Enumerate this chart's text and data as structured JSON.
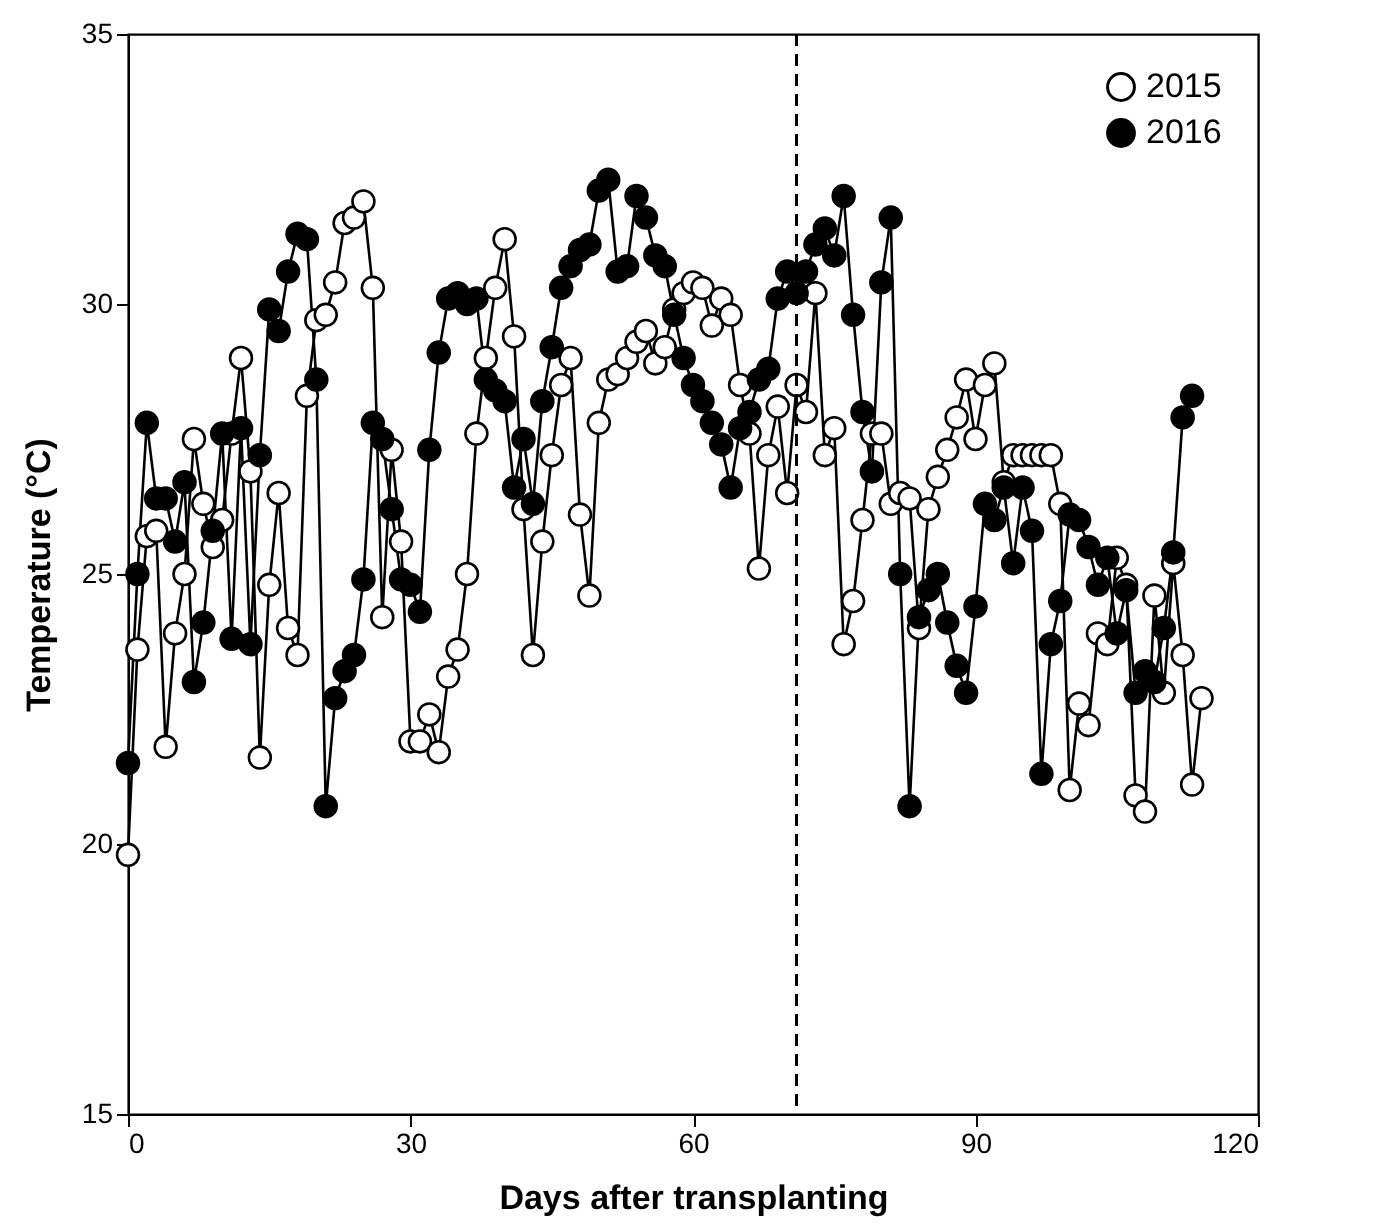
{
  "chart_data": {
    "type": "line",
    "xlabel": "Days after transplanting",
    "ylabel": "Temperature (°C)",
    "xlim": [
      0,
      120
    ],
    "xticks": [
      0,
      30,
      60,
      90,
      120
    ],
    "ylim": [
      15,
      35
    ],
    "yticks": [
      15,
      20,
      25,
      30,
      35
    ],
    "grid": false,
    "legend": "top right",
    "marker": "circle",
    "line_style": "solid",
    "ref_lines": [
      {
        "axis": "x",
        "value": 71,
        "label": null,
        "line_style": "dashed"
      }
    ],
    "series": [
      {
        "name": "2015",
        "color": "#ffffff",
        "x": [
          0,
          1,
          2,
          3,
          4,
          5,
          6,
          7,
          8,
          9,
          10,
          11,
          12,
          13,
          14,
          15,
          16,
          17,
          18,
          19,
          20,
          21,
          22,
          23,
          24,
          25,
          26,
          27,
          28,
          29,
          30,
          31,
          32,
          33,
          34,
          35,
          36,
          37,
          38,
          39,
          40,
          41,
          42,
          43,
          44,
          45,
          46,
          47,
          48,
          49,
          50,
          51,
          52,
          53,
          54,
          55,
          56,
          57,
          58,
          59,
          60,
          61,
          62,
          63,
          64,
          65,
          66,
          67,
          68,
          69,
          70,
          71,
          72,
          73,
          74,
          75,
          76,
          77,
          78,
          79,
          80,
          81,
          82,
          83,
          84,
          85,
          86,
          87,
          88,
          89,
          90,
          91,
          92,
          93,
          94,
          95,
          96,
          97,
          98,
          99,
          100,
          101,
          102,
          103,
          104,
          105,
          106,
          107,
          108,
          109,
          110,
          111,
          112,
          113,
          114
        ],
        "values": [
          19.8,
          23.6,
          25.7,
          25.8,
          21.8,
          23.9,
          25.0,
          27.5,
          26.3,
          25.5,
          26.0,
          27.6,
          29.0,
          26.9,
          21.6,
          24.8,
          26.5,
          24.0,
          23.5,
          28.3,
          29.7,
          29.8,
          30.4,
          31.5,
          31.6,
          31.9,
          30.3,
          24.2,
          27.3,
          25.6,
          21.9,
          21.9,
          22.4,
          21.7,
          23.1,
          23.6,
          25.0,
          27.6,
          29.0,
          30.3,
          31.2,
          29.4,
          26.2,
          23.5,
          25.6,
          27.2,
          28.5,
          29.0,
          26.1,
          24.6,
          27.8,
          28.6,
          28.7,
          29.0,
          29.3,
          29.5,
          28.9,
          29.2,
          29.9,
          30.2,
          30.4,
          30.3,
          29.6,
          30.1,
          29.8,
          28.5,
          27.6,
          25.1,
          27.2,
          28.1,
          26.5,
          28.5,
          28.0,
          30.2,
          27.2,
          27.7,
          23.7,
          24.5,
          26.0,
          27.6,
          27.6,
          26.3,
          26.5,
          26.4,
          24.0,
          26.2,
          26.8,
          27.3,
          27.9,
          28.6,
          27.5,
          28.5,
          28.9,
          26.7,
          27.2,
          27.2,
          27.2,
          27.2,
          27.2,
          26.3,
          21.0,
          22.6,
          22.2,
          23.9,
          23.7,
          25.3,
          24.8,
          20.9,
          20.6,
          24.6,
          22.8,
          25.2,
          23.5,
          21.1,
          22.7
        ]
      },
      {
        "name": "2016",
        "color": "#000000",
        "x": [
          0,
          1,
          2,
          3,
          4,
          5,
          6,
          7,
          8,
          9,
          10,
          11,
          12,
          13,
          14,
          15,
          16,
          17,
          18,
          19,
          20,
          21,
          22,
          23,
          24,
          25,
          26,
          27,
          28,
          29,
          30,
          31,
          32,
          33,
          34,
          35,
          36,
          37,
          38,
          39,
          40,
          41,
          42,
          43,
          44,
          45,
          46,
          47,
          48,
          49,
          50,
          51,
          52,
          53,
          54,
          55,
          56,
          57,
          58,
          59,
          60,
          61,
          62,
          63,
          64,
          65,
          66,
          67,
          68,
          69,
          70,
          71,
          72,
          73,
          74,
          75,
          76,
          77,
          78,
          79,
          80,
          81,
          82,
          83,
          84,
          85,
          86,
          87,
          88,
          89,
          90,
          91,
          92,
          93,
          94,
          95,
          96,
          97,
          98,
          99,
          100,
          101,
          102,
          103,
          104,
          105,
          106,
          107,
          108,
          109,
          110,
          111,
          112,
          113
        ],
        "values": [
          21.5,
          25.0,
          27.8,
          26.4,
          26.4,
          25.6,
          26.7,
          23.0,
          24.1,
          25.8,
          27.6,
          23.8,
          27.7,
          23.7,
          27.2,
          29.9,
          29.5,
          30.6,
          31.3,
          31.2,
          28.6,
          20.7,
          22.7,
          23.2,
          23.5,
          24.9,
          27.8,
          27.5,
          26.2,
          24.9,
          24.8,
          24.3,
          27.3,
          29.1,
          30.1,
          30.2,
          30.0,
          30.1,
          28.6,
          28.4,
          28.2,
          26.6,
          27.5,
          26.3,
          28.2,
          29.2,
          30.3,
          30.7,
          31.0,
          31.1,
          32.1,
          32.3,
          30.6,
          30.7,
          32.0,
          31.6,
          30.9,
          30.7,
          29.8,
          29.0,
          28.5,
          28.2,
          27.8,
          27.4,
          26.6,
          27.7,
          28.0,
          28.6,
          28.8,
          30.1,
          30.6,
          30.2,
          30.6,
          31.1,
          31.4,
          30.9,
          32.0,
          29.8,
          28.0,
          26.9,
          30.4,
          31.6,
          25.0,
          20.7,
          24.2,
          24.7,
          25.0,
          24.1,
          23.3,
          22.8,
          24.4,
          26.3,
          26.0,
          26.6,
          25.2,
          26.6,
          25.8,
          21.3,
          23.7,
          24.5,
          26.1,
          26.0,
          25.5,
          24.8,
          25.3,
          23.9,
          24.7,
          22.8,
          23.2,
          23.0,
          24.0,
          25.4,
          27.9,
          28.3
        ]
      }
    ]
  }
}
